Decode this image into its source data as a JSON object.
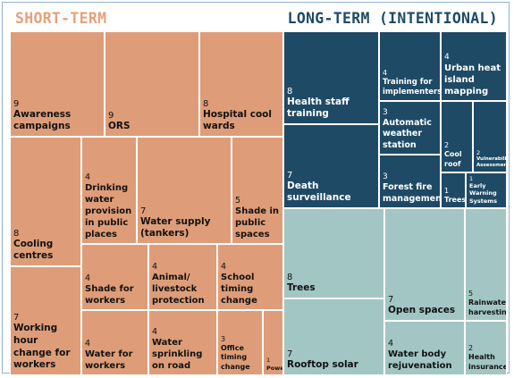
{
  "headers": {
    "short_term": "SHORT-TERM",
    "long_term": "LONG-TERM (INTENTIONAL)"
  },
  "colors": {
    "short_term": "#de9d78",
    "long_term_dark": "#1f4a66",
    "long_term_light": "#a2c6c4",
    "text_dark": "#111111",
    "text_light": "#ffffff",
    "header_short": "#e7a07a",
    "header_long": "#1f4a66"
  },
  "chart_data": {
    "type": "treemap",
    "groups": [
      {
        "name": "SHORT-TERM",
        "items": [
          {
            "label": "Awareness campaigns",
            "value": 9
          },
          {
            "label": "ORS",
            "value": 9
          },
          {
            "label": "Hospital cool wards",
            "value": 8
          },
          {
            "label": "Cooling centres",
            "value": 8
          },
          {
            "label": "Drinking water provision in public places",
            "value": 4
          },
          {
            "label": "Water supply (tankers)",
            "value": 7
          },
          {
            "label": "Shade in public spaces",
            "value": 5
          },
          {
            "label": "Working hour change for workers",
            "value": 7
          },
          {
            "label": "Shade for workers",
            "value": 4
          },
          {
            "label": "Animal/ livestock protection",
            "value": 4
          },
          {
            "label": "School timing change",
            "value": 4
          },
          {
            "label": "Water for workers",
            "value": 4
          },
          {
            "label": "Water sprinkling on road",
            "value": 4
          },
          {
            "label": "Office timing change",
            "value": 3
          },
          {
            "label": "Power",
            "value": 1
          }
        ]
      },
      {
        "name": "LONG-TERM (INTENTIONAL)",
        "items": [
          {
            "label": "Health staff training",
            "value": 8,
            "shade": "dark"
          },
          {
            "label": "Training for implementers",
            "value": 4,
            "shade": "dark"
          },
          {
            "label": "Urban heat island mapping",
            "value": 4,
            "shade": "dark"
          },
          {
            "label": "Automatic weather station",
            "value": 3,
            "shade": "dark"
          },
          {
            "label": "Death surveillance",
            "value": 7,
            "shade": "dark"
          },
          {
            "label": "Forest fire management",
            "value": 3,
            "shade": "dark"
          },
          {
            "label": "Cool roof",
            "value": 2,
            "shade": "dark"
          },
          {
            "label": "Vulnerability Assessment",
            "value": 2,
            "shade": "dark"
          },
          {
            "label": "Trees",
            "value": 1,
            "shade": "dark"
          },
          {
            "label": "Early Warning Systems",
            "value": 1,
            "shade": "dark"
          },
          {
            "label": "Trees",
            "value": 8,
            "shade": "light"
          },
          {
            "label": "Open spaces",
            "value": 7,
            "shade": "light"
          },
          {
            "label": "Rainwater harvesting",
            "value": 5,
            "shade": "light"
          },
          {
            "label": "Rooftop solar",
            "value": 7,
            "shade": "light"
          },
          {
            "label": "Water body rejuvenation",
            "value": 4,
            "shade": "light"
          },
          {
            "label": "Health insurance",
            "value": 2,
            "shade": "light"
          }
        ]
      }
    ]
  }
}
